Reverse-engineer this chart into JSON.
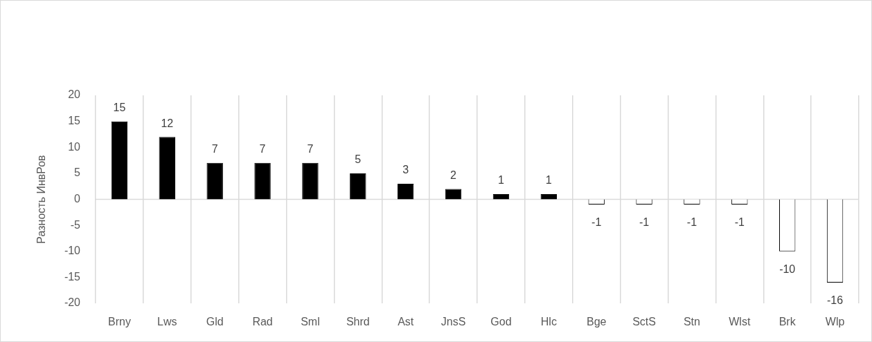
{
  "chart_data": {
    "type": "bar",
    "ylabel": "Разность ИнвРов",
    "categories": [
      "Brny",
      "Lws",
      "Gld",
      "Rad",
      "Sml",
      "Shrd",
      "Ast",
      "JnsS",
      "God",
      "Hlc",
      "Bge",
      "SctS",
      "Stn",
      "Wlst",
      "Brk",
      "Wlp"
    ],
    "values": [
      15,
      12,
      7,
      7,
      7,
      5,
      3,
      2,
      1,
      1,
      -1,
      -1,
      -1,
      -1,
      -10,
      -16
    ],
    "colors": [
      "#000000",
      "#000000",
      "#000000",
      "#000000",
      "#000000",
      "#000000",
      "#000000",
      "#000000",
      "#000000",
      "#000000",
      "#ffffff",
      "#ffffff",
      "#ffffff",
      "#ffffff",
      "#ffffff",
      "#ffffff"
    ],
    "ylim": [
      -20,
      20
    ],
    "yticks": [
      -20,
      -15,
      -10,
      -5,
      0,
      5,
      10,
      15,
      20
    ],
    "ref_lines": [
      {
        "axis": "y",
        "value": 0,
        "color": "#d9d9d9"
      }
    ],
    "grid": "x",
    "data_labels": true
  }
}
